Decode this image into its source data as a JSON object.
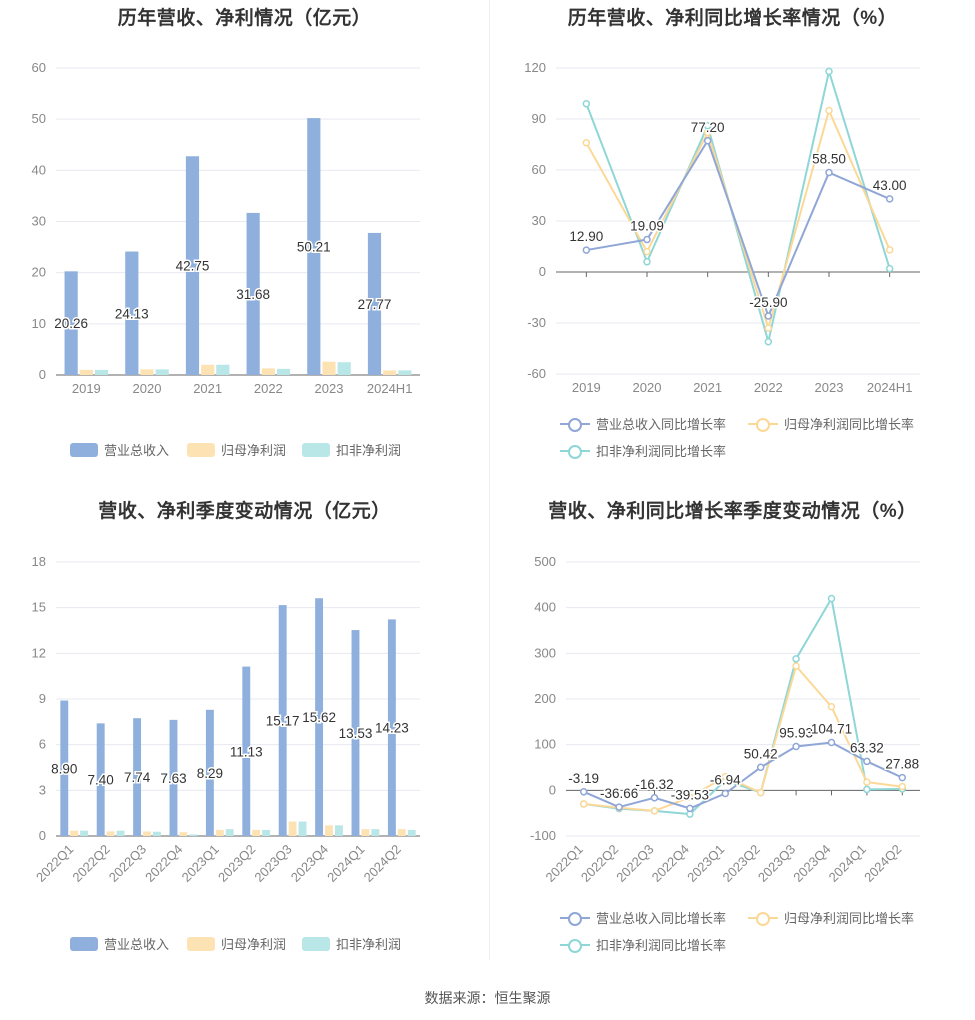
{
  "source": "数据来源：恒生聚源",
  "chart_data": [
    {
      "id": "annual_values",
      "type": "bar",
      "title": "历年营收、净利情况（亿元）",
      "categories": [
        "2019",
        "2020",
        "2021",
        "2022",
        "2023",
        "2024H1"
      ],
      "ylim": [
        0,
        60
      ],
      "yticks": [
        0,
        10,
        20,
        30,
        40,
        50,
        60
      ],
      "series": [
        {
          "name": "营业总收入",
          "color": "#8fb0dd",
          "values": [
            20.26,
            24.13,
            42.75,
            31.68,
            50.21,
            27.77
          ],
          "labels": [
            "20.26",
            "24.13",
            "42.75",
            "31.68",
            "50.21",
            "27.77"
          ]
        },
        {
          "name": "归母净利润",
          "color": "#fde2b4",
          "values": [
            1.0,
            1.1,
            2.0,
            1.3,
            2.6,
            0.9
          ]
        },
        {
          "name": "扣非净利润",
          "color": "#b9e6e6",
          "values": [
            1.0,
            1.1,
            2.0,
            1.2,
            2.5,
            0.9
          ]
        }
      ],
      "grid": true,
      "legend": "bottom"
    },
    {
      "id": "annual_growth",
      "type": "line",
      "title": "历年营收、净利同比增长率情况（%）",
      "categories": [
        "2019",
        "2020",
        "2021",
        "2022",
        "2023",
        "2024H1"
      ],
      "ylim": [
        -60,
        120
      ],
      "yticks": [
        -60,
        -30,
        0,
        30,
        60,
        90,
        120
      ],
      "series": [
        {
          "name": "营业总收入同比增长率",
          "color": "#8fa6d6",
          "values": [
            12.9,
            19.09,
            77.2,
            -25.9,
            58.5,
            43.0
          ],
          "labels": [
            "12.90",
            "19.09",
            "77.20",
            "-25.90",
            "58.50",
            "43.00"
          ]
        },
        {
          "name": "归母净利润同比增长率",
          "color": "#fcd896",
          "values": [
            76,
            12,
            82,
            -33,
            95,
            13
          ]
        },
        {
          "name": "扣非净利润同比增长率",
          "color": "#8fd6d6",
          "values": [
            99,
            6,
            86,
            -41,
            118,
            2
          ]
        }
      ],
      "grid": true,
      "legend": "bottom"
    },
    {
      "id": "quarterly_values",
      "type": "bar",
      "title": "营收、净利季度变动情况（亿元）",
      "categories": [
        "2022Q1",
        "2022Q2",
        "2022Q3",
        "2022Q4",
        "2023Q1",
        "2023Q2",
        "2023Q3",
        "2023Q4",
        "2024Q1",
        "2024Q2"
      ],
      "ylim": [
        0,
        18
      ],
      "yticks": [
        0,
        3,
        6,
        9,
        12,
        15,
        18
      ],
      "series": [
        {
          "name": "营业总收入",
          "color": "#8fb0dd",
          "values": [
            8.9,
            7.4,
            7.74,
            7.63,
            8.29,
            11.13,
            15.17,
            15.62,
            13.53,
            14.23
          ],
          "labels": [
            "8.90",
            "7.40",
            "7.74",
            "7.63",
            "8.29",
            "11.13",
            "15.17",
            "15.62",
            "13.53",
            "14.23"
          ]
        },
        {
          "name": "归母净利润",
          "color": "#fde2b4",
          "values": [
            0.35,
            0.3,
            0.3,
            0.25,
            0.4,
            0.4,
            0.95,
            0.7,
            0.45,
            0.45
          ]
        },
        {
          "name": "扣非净利润",
          "color": "#b9e6e6",
          "values": [
            0.35,
            0.35,
            0.28,
            0.1,
            0.45,
            0.4,
            0.95,
            0.7,
            0.45,
            0.4
          ]
        }
      ],
      "grid": true,
      "legend": "bottom"
    },
    {
      "id": "quarterly_growth",
      "type": "line",
      "title": "营收、净利同比增长率季度变动情况（%）",
      "categories": [
        "2022Q1",
        "2022Q2",
        "2022Q3",
        "2022Q4",
        "2023Q1",
        "2023Q2",
        "2023Q3",
        "2023Q4",
        "2024Q1",
        "2024Q2"
      ],
      "ylim": [
        -100,
        500
      ],
      "yticks": [
        -100,
        0,
        100,
        200,
        300,
        400,
        500
      ],
      "series": [
        {
          "name": "营业总收入同比增长率",
          "color": "#8fa6d6",
          "values": [
            -3.19,
            -36.66,
            -16.32,
            -39.53,
            -6.94,
            50.42,
            95.93,
            104.71,
            63.32,
            27.88
          ],
          "labels": [
            "-3.19",
            "-36.66",
            "-16.32",
            "-39.53",
            "-6.94",
            "50.42",
            "95.93",
            "104.71",
            "63.32",
            "27.88"
          ]
        },
        {
          "name": "归母净利润同比增长率",
          "color": "#fcd896",
          "values": [
            -30,
            -38,
            -45,
            -15,
            30,
            -5,
            272,
            183,
            18,
            8
          ]
        },
        {
          "name": "扣非净利润同比增长率",
          "color": "#8fd6d6",
          "values": [
            -30,
            -40,
            -45,
            -52,
            22,
            -5,
            288,
            420,
            2,
            3
          ]
        }
      ],
      "grid": true,
      "legend": "bottom"
    }
  ]
}
